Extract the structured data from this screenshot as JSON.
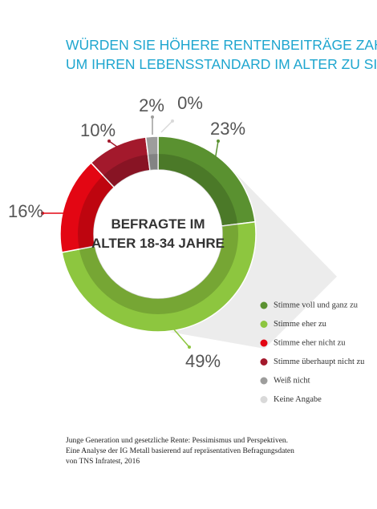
{
  "chart_data": {
    "type": "donut",
    "title": [
      "WÜRDEN SIE HÖHERE RENTENBEITRÄGE ZAHLEN,",
      "UM IHREN LEBENSSTANDARD IM ALTER ZU SICHERN?"
    ],
    "center_label": [
      "BEFRAGTE IM",
      "ALTER 18-34 JAHRE"
    ],
    "categories": [
      "Stimme voll und ganz zu",
      "Stimme eher zu",
      "Stimme eher nicht zu",
      "Stimme überhaupt nicht zu",
      "Weiß nicht",
      "Keine Angabe"
    ],
    "values": [
      23,
      49,
      16,
      10,
      2,
      0
    ],
    "value_labels": [
      "23%",
      "49%",
      "16%",
      "10%",
      "2%",
      "0%"
    ],
    "colors": [
      "#5a9130",
      "#8dc63f",
      "#e30613",
      "#a3192c",
      "#9d9d9c",
      "#d9d9d9"
    ],
    "footnote": [
      "Junge Generation und gesetzliche Rente: Pessimismus und Perspektiven.",
      "Eine Analyse der IG Metall basierend auf repräsentativen Befragungsdaten",
      "von TNS Infratest, 2016"
    ]
  }
}
